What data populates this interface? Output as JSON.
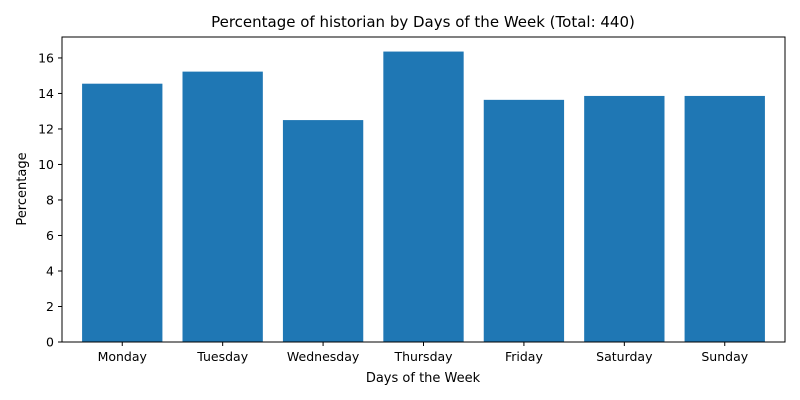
{
  "chart_data": {
    "type": "bar",
    "title": "Percentage of historian by Days of the Week (Total: 440)",
    "xlabel": "Days of the Week",
    "ylabel": "Percentage",
    "categories": [
      "Monday",
      "Tuesday",
      "Wednesday",
      "Thursday",
      "Friday",
      "Saturday",
      "Sunday"
    ],
    "values": [
      14.55,
      15.23,
      12.5,
      16.36,
      13.64,
      13.86,
      13.86
    ],
    "ylim": [
      0,
      17.18
    ],
    "yticks": [
      0,
      2,
      4,
      6,
      8,
      10,
      12,
      14,
      16
    ],
    "grid": false,
    "legend": "none",
    "bar_color": "#1f77b4"
  }
}
